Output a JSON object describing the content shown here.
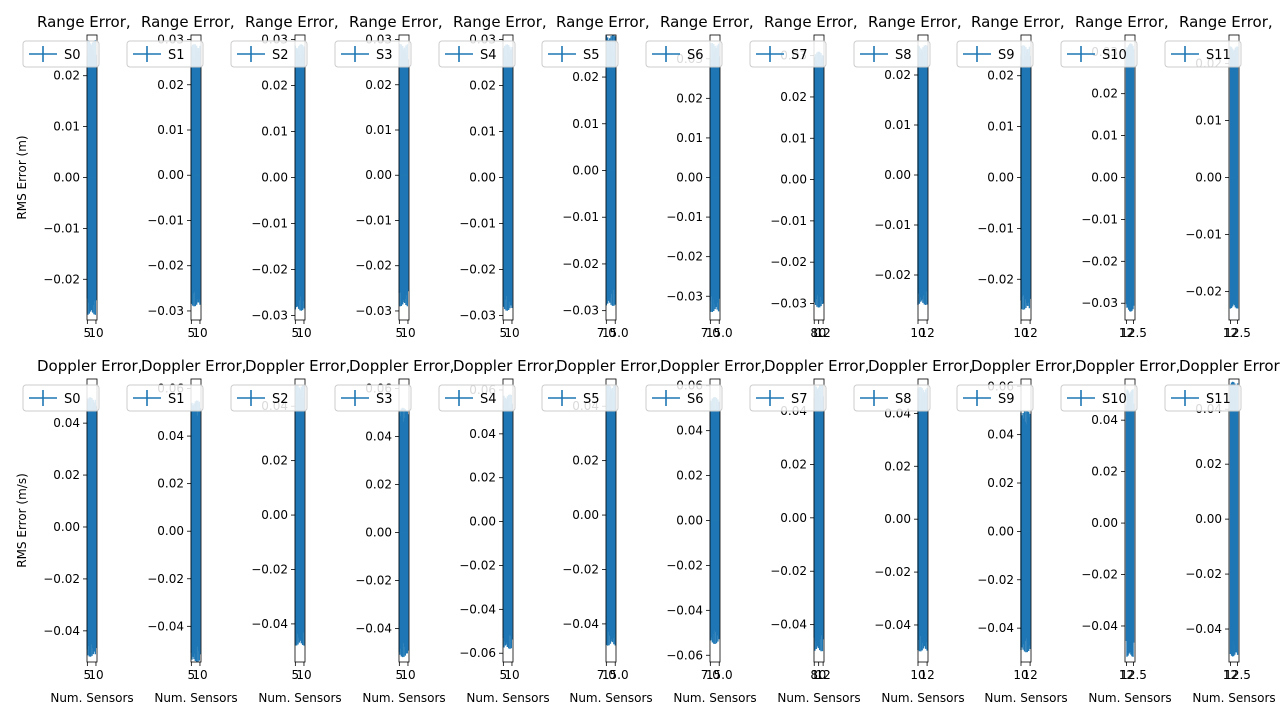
{
  "figure": {
    "accent": "#1f77b4",
    "background": "#ffffff",
    "legend_placement": "upper-left",
    "grid": false
  },
  "chart_data": [
    {
      "type": "line",
      "title": "Range Error,",
      "xlabel": "",
      "ylabel": "RMS Error (m)",
      "series": [
        {
          "name": "S0",
          "x": [
            5,
            10
          ],
          "values": [
            0,
            0
          ]
        }
      ],
      "x_ticks": [
        "5",
        "10"
      ],
      "xlim": [
        4.8,
        10.6
      ],
      "ylim": [
        -0.028,
        0.028
      ],
      "y_ticks": [
        -0.02,
        -0.01,
        0.0,
        0.01,
        0.02
      ],
      "error_band": 0.027
    },
    {
      "type": "line",
      "title": "Range Error,",
      "xlabel": "",
      "ylabel": "",
      "series": [
        {
          "name": "S1",
          "x": [
            5,
            10
          ],
          "values": [
            0,
            0
          ]
        }
      ],
      "x_ticks": [
        "5",
        "10"
      ],
      "xlim": [
        4.8,
        10.6
      ],
      "ylim": [
        -0.032,
        0.031
      ],
      "y_ticks": [
        -0.03,
        -0.02,
        -0.01,
        0.0,
        0.01,
        0.02,
        0.03
      ],
      "error_band": 0.029
    },
    {
      "type": "line",
      "title": "Range Error,",
      "xlabel": "",
      "ylabel": "",
      "series": [
        {
          "name": "S2",
          "x": [
            5,
            10
          ],
          "values": [
            0,
            0
          ]
        }
      ],
      "x_ticks": [
        "5",
        "10"
      ],
      "xlim": [
        4.8,
        10.6
      ],
      "ylim": [
        -0.031,
        0.031
      ],
      "y_ticks": [
        -0.03,
        -0.02,
        -0.01,
        0.0,
        0.01,
        0.02,
        0.03
      ],
      "error_band": 0.029
    },
    {
      "type": "line",
      "title": "Range Error,",
      "xlabel": "",
      "ylabel": "",
      "series": [
        {
          "name": "S3",
          "x": [
            5,
            10
          ],
          "values": [
            0,
            0
          ]
        }
      ],
      "x_ticks": [
        "5",
        "10"
      ],
      "xlim": [
        4.8,
        10.6
      ],
      "ylim": [
        -0.032,
        0.031
      ],
      "y_ticks": [
        -0.03,
        -0.02,
        -0.01,
        0.0,
        0.01,
        0.02,
        0.03
      ],
      "error_band": 0.029
    },
    {
      "type": "line",
      "title": "Range Error,",
      "xlabel": "",
      "ylabel": "",
      "series": [
        {
          "name": "S4",
          "x": [
            5,
            10
          ],
          "values": [
            0,
            0
          ]
        }
      ],
      "x_ticks": [
        "5",
        "10"
      ],
      "xlim": [
        4.8,
        10.6
      ],
      "ylim": [
        -0.031,
        0.031
      ],
      "y_ticks": [
        -0.03,
        -0.02,
        -0.01,
        0.0,
        0.01,
        0.02,
        0.03
      ],
      "error_band": 0.029
    },
    {
      "type": "line",
      "title": "Range Error,",
      "xlabel": "",
      "ylabel": "",
      "series": [
        {
          "name": "S5",
          "x": [
            7.0,
            15.0
          ],
          "values": [
            0,
            0
          ]
        }
      ],
      "x_ticks": [
        "7.0",
        "15.0"
      ],
      "xlim": [
        6.7,
        15.7
      ],
      "ylim": [
        -0.032,
        0.029
      ],
      "y_ticks": [
        -0.03,
        -0.02,
        -0.01,
        0.0,
        0.01,
        0.02
      ],
      "error_band": 0.029
    },
    {
      "type": "line",
      "title": "Range Error,",
      "xlabel": "",
      "ylabel": "",
      "series": [
        {
          "name": "S6",
          "x": [
            7.0,
            15.0
          ],
          "values": [
            0,
            0
          ]
        }
      ],
      "x_ticks": [
        "7.0",
        "15.0"
      ],
      "xlim": [
        6.7,
        15.7
      ],
      "ylim": [
        -0.036,
        0.036
      ],
      "y_ticks": [
        -0.03,
        -0.02,
        -0.01,
        0.0,
        0.01,
        0.02,
        0.03
      ],
      "error_band": 0.034
    },
    {
      "type": "line",
      "title": "Range Error,",
      "xlabel": "",
      "ylabel": "",
      "series": [
        {
          "name": "S7",
          "x": [
            8,
            12
          ],
          "values": [
            0,
            0
          ]
        }
      ],
      "x_ticks": [
        "8",
        "10",
        "12"
      ],
      "xlim": [
        7.9,
        12.4
      ],
      "ylim": [
        -0.034,
        0.035
      ],
      "y_ticks": [
        -0.03,
        -0.02,
        -0.01,
        0.0,
        0.01,
        0.02,
        0.03
      ],
      "error_band": 0.031
    },
    {
      "type": "line",
      "title": "Range Error,",
      "xlabel": "",
      "ylabel": "",
      "series": [
        {
          "name": "S8",
          "x": [
            10,
            12
          ],
          "values": [
            0,
            0
          ]
        }
      ],
      "x_ticks": [
        "10",
        "12"
      ],
      "xlim": [
        10,
        12.2
      ],
      "ylim": [
        -0.029,
        0.028
      ],
      "y_ticks": [
        -0.02,
        -0.01,
        0.0,
        0.01,
        0.02
      ],
      "error_band": 0.026
    },
    {
      "type": "line",
      "title": "Range Error,",
      "xlabel": "",
      "ylabel": "",
      "series": [
        {
          "name": "S9",
          "x": [
            10,
            12
          ],
          "values": [
            0,
            0
          ]
        }
      ],
      "x_ticks": [
        "10",
        "12"
      ],
      "xlim": [
        10,
        12.2
      ],
      "ylim": [
        -0.028,
        0.028
      ],
      "y_ticks": [
        -0.02,
        -0.01,
        0.0,
        0.01,
        0.02
      ],
      "error_band": 0.026
    },
    {
      "type": "line",
      "title": "Range Error,",
      "xlabel": "",
      "ylabel": "",
      "series": [
        {
          "name": "S10",
          "x": [
            12,
            12.5
          ],
          "values": [
            0,
            0
          ]
        }
      ],
      "x_ticks": [
        "12",
        "12.5"
      ],
      "xlim": [
        11.9,
        12.6
      ],
      "ylim": [
        -0.034,
        0.034
      ],
      "y_ticks": [
        -0.03,
        -0.02,
        -0.01,
        0.0,
        0.01,
        0.02,
        0.03
      ],
      "error_band": 0.032
    },
    {
      "type": "line",
      "title": "Range Error,",
      "xlabel": "",
      "ylabel": "",
      "series": [
        {
          "name": "S11",
          "x": [
            12,
            12.5
          ],
          "values": [
            0,
            0
          ]
        }
      ],
      "x_ticks": [
        "12",
        "12.5"
      ],
      "xlim": [
        11.9,
        12.6
      ],
      "ylim": [
        -0.025,
        0.025
      ],
      "y_ticks": [
        -0.02,
        -0.01,
        0.0,
        0.01,
        0.02
      ],
      "error_band": 0.023
    },
    {
      "type": "line",
      "title": "Doppler Error,",
      "xlabel": "Num. Sensors",
      "ylabel": "RMS Error (m/s)",
      "series": [
        {
          "name": "S0",
          "x": [
            5,
            10
          ],
          "values": [
            0,
            0
          ]
        }
      ],
      "x_ticks": [
        "5",
        "10"
      ],
      "xlim": [
        4.8,
        10.6
      ],
      "ylim": [
        -0.052,
        0.057
      ],
      "y_ticks": [
        -0.04,
        -0.02,
        0.0,
        0.02,
        0.04
      ],
      "error_band": 0.05
    },
    {
      "type": "line",
      "title": "Doppler Error,",
      "xlabel": "Num. Sensors",
      "ylabel": "",
      "series": [
        {
          "name": "S1",
          "x": [
            5,
            10
          ],
          "values": [
            0,
            0
          ]
        }
      ],
      "x_ticks": [
        "5",
        "10"
      ],
      "xlim": [
        4.8,
        10.6
      ],
      "ylim": [
        -0.055,
        0.064
      ],
      "y_ticks": [
        -0.04,
        -0.02,
        0.0,
        0.02,
        0.04,
        0.06
      ],
      "error_band": 0.055
    },
    {
      "type": "line",
      "title": "Doppler Error,",
      "xlabel": "Num. Sensors",
      "ylabel": "",
      "series": [
        {
          "name": "S2",
          "x": [
            5,
            10
          ],
          "values": [
            0,
            0
          ]
        }
      ],
      "x_ticks": [
        "5",
        "10"
      ],
      "xlim": [
        4.8,
        10.6
      ],
      "ylim": [
        -0.054,
        0.05
      ],
      "y_ticks": [
        -0.04,
        -0.02,
        0.0,
        0.02,
        0.04
      ],
      "error_band": 0.048
    },
    {
      "type": "line",
      "title": "Doppler Error,",
      "xlabel": "Num. Sensors",
      "ylabel": "",
      "series": [
        {
          "name": "S3",
          "x": [
            5,
            10
          ],
          "values": [
            0,
            0
          ]
        }
      ],
      "x_ticks": [
        "5",
        "10"
      ],
      "xlim": [
        4.8,
        10.6
      ],
      "ylim": [
        -0.054,
        0.064
      ],
      "y_ticks": [
        -0.04,
        -0.02,
        0.0,
        0.02,
        0.04,
        0.06
      ],
      "error_band": 0.052
    },
    {
      "type": "line",
      "title": "Doppler Error,",
      "xlabel": "Num. Sensors",
      "ylabel": "",
      "series": [
        {
          "name": "S4",
          "x": [
            5,
            10
          ],
          "values": [
            0,
            0
          ]
        }
      ],
      "x_ticks": [
        "5",
        "10"
      ],
      "xlim": [
        4.8,
        10.6
      ],
      "ylim": [
        -0.064,
        0.065
      ],
      "y_ticks": [
        -0.06,
        -0.04,
        -0.02,
        0.0,
        0.02,
        0.04,
        0.06
      ],
      "error_band": 0.058
    },
    {
      "type": "line",
      "title": "Doppler Error,",
      "xlabel": "Num. Sensors",
      "ylabel": "",
      "series": [
        {
          "name": "S5",
          "x": [
            7.0,
            15.0
          ],
          "values": [
            0,
            0
          ]
        }
      ],
      "x_ticks": [
        "7.0",
        "15.0"
      ],
      "xlim": [
        6.7,
        15.7
      ],
      "ylim": [
        -0.054,
        0.05
      ],
      "y_ticks": [
        -0.04,
        -0.02,
        0.0,
        0.02,
        0.04
      ],
      "error_band": 0.048
    },
    {
      "type": "line",
      "title": "Doppler Error,",
      "xlabel": "Num. Sensors",
      "ylabel": "",
      "series": [
        {
          "name": "S6",
          "x": [
            7.0,
            15.0
          ],
          "values": [
            0,
            0
          ]
        }
      ],
      "x_ticks": [
        "7.0",
        "15.0"
      ],
      "xlim": [
        6.7,
        15.7
      ],
      "ylim": [
        -0.063,
        0.063
      ],
      "y_ticks": [
        -0.06,
        -0.04,
        -0.02,
        0.0,
        0.02,
        0.04,
        0.06
      ],
      "error_band": 0.055
    },
    {
      "type": "line",
      "title": "Doppler Error,",
      "xlabel": "Num. Sensors",
      "ylabel": "",
      "series": [
        {
          "name": "S7",
          "x": [
            8,
            12
          ],
          "values": [
            0,
            0
          ]
        }
      ],
      "x_ticks": [
        "8",
        "10",
        "12"
      ],
      "xlim": [
        7.9,
        12.4
      ],
      "ylim": [
        -0.054,
        0.052
      ],
      "y_ticks": [
        -0.04,
        -0.02,
        0.0,
        0.02,
        0.04
      ],
      "error_band": 0.05
    },
    {
      "type": "line",
      "title": "Doppler Error,",
      "xlabel": "Num. Sensors",
      "ylabel": "",
      "series": [
        {
          "name": "S8",
          "x": [
            10,
            12
          ],
          "values": [
            0,
            0
          ]
        }
      ],
      "x_ticks": [
        "10",
        "12"
      ],
      "xlim": [
        10,
        12.2
      ],
      "ylim": [
        -0.054,
        0.053
      ],
      "y_ticks": [
        -0.04,
        -0.02,
        0.0,
        0.02,
        0.04
      ],
      "error_band": 0.05
    },
    {
      "type": "line",
      "title": "Doppler Error,",
      "xlabel": "Num. Sensors",
      "ylabel": "",
      "series": [
        {
          "name": "S9",
          "x": [
            10,
            12
          ],
          "values": [
            0,
            0
          ]
        }
      ],
      "x_ticks": [
        "10",
        "12"
      ],
      "xlim": [
        10,
        12.2
      ],
      "ylim": [
        -0.054,
        0.063
      ],
      "y_ticks": [
        -0.04,
        -0.02,
        0.0,
        0.02,
        0.04,
        0.06
      ],
      "error_band": 0.05
    },
    {
      "type": "line",
      "title": "Doppler Error,",
      "xlabel": "Num. Sensors",
      "ylabel": "",
      "series": [
        {
          "name": "S10",
          "x": [
            12,
            12.5
          ],
          "values": [
            0,
            0
          ]
        }
      ],
      "x_ticks": [
        "12",
        "12.5"
      ],
      "xlim": [
        11.9,
        12.6
      ],
      "ylim": [
        -0.054,
        0.056
      ],
      "y_ticks": [
        -0.04,
        -0.02,
        0.0,
        0.02,
        0.04
      ],
      "error_band": 0.052
    },
    {
      "type": "line",
      "title": "Doppler Error,",
      "xlabel": "Num. Sensors",
      "ylabel": "",
      "series": [
        {
          "name": "S11",
          "x": [
            12,
            12.5
          ],
          "values": [
            0,
            0
          ]
        }
      ],
      "x_ticks": [
        "12",
        "12.5"
      ],
      "xlim": [
        11.9,
        12.6
      ],
      "ylim": [
        -0.052,
        0.051
      ],
      "y_ticks": [
        -0.04,
        -0.02,
        0.0,
        0.02,
        0.04
      ],
      "error_band": 0.05
    }
  ]
}
